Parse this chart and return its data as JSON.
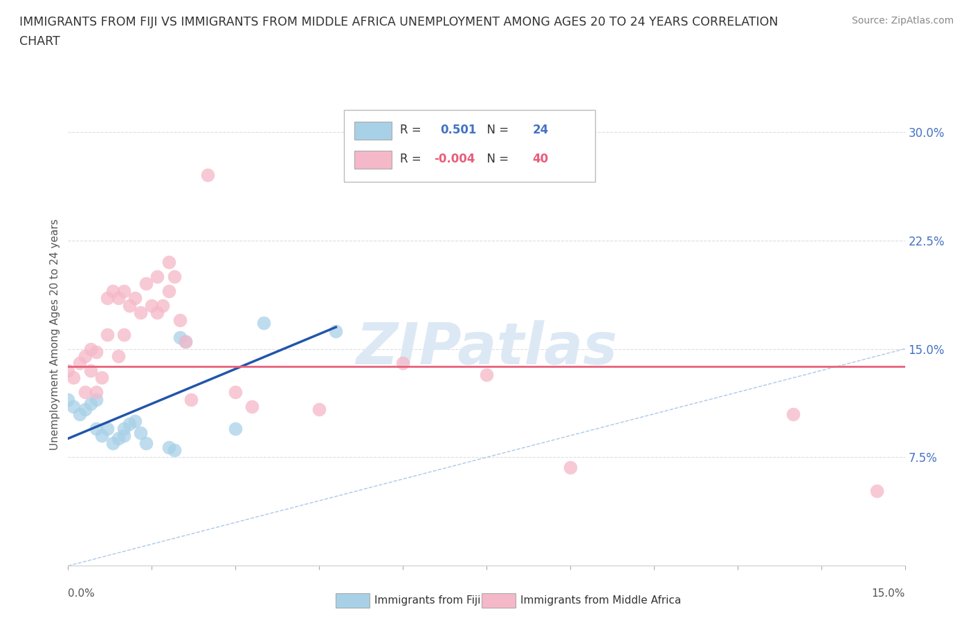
{
  "title_line1": "IMMIGRANTS FROM FIJI VS IMMIGRANTS FROM MIDDLE AFRICA UNEMPLOYMENT AMONG AGES 20 TO 24 YEARS CORRELATION",
  "title_line2": "CHART",
  "source": "Source: ZipAtlas.com",
  "ylabel": "Unemployment Among Ages 20 to 24 years",
  "fiji_R": "0.501",
  "fiji_N": "24",
  "middle_africa_R": "-0.004",
  "middle_africa_N": "40",
  "fiji_color": "#a8d1e8",
  "middle_africa_color": "#f5b8c8",
  "fiji_line_color": "#2255aa",
  "middle_africa_line_color": "#e8607a",
  "diagonal_line_color": "#aac8e8",
  "watermark_text": "ZIPatlas",
  "watermark_color": "#dce9f5",
  "background_color": "#ffffff",
  "grid_color": "#dddddd",
  "xlim": [
    0.0,
    0.15
  ],
  "ylim": [
    0.0,
    0.32
  ],
  "ytick_vals": [
    0.075,
    0.15,
    0.225,
    0.3
  ],
  "ytick_lbls": [
    "7.5%",
    "15.0%",
    "22.5%",
    "30.0%"
  ],
  "xtick_vals": [
    0.0,
    0.015,
    0.03,
    0.045,
    0.06,
    0.075,
    0.09,
    0.105,
    0.12,
    0.135,
    0.15
  ],
  "fiji_scatter_x": [
    0.0,
    0.001,
    0.002,
    0.003,
    0.004,
    0.005,
    0.005,
    0.006,
    0.007,
    0.008,
    0.009,
    0.01,
    0.01,
    0.011,
    0.012,
    0.013,
    0.014,
    0.018,
    0.019,
    0.02,
    0.021,
    0.03,
    0.035,
    0.048
  ],
  "fiji_scatter_y": [
    0.115,
    0.11,
    0.105,
    0.108,
    0.112,
    0.115,
    0.095,
    0.09,
    0.095,
    0.085,
    0.088,
    0.09,
    0.095,
    0.098,
    0.1,
    0.092,
    0.085,
    0.082,
    0.08,
    0.158,
    0.155,
    0.095,
    0.168,
    0.162
  ],
  "middle_africa_scatter_x": [
    0.0,
    0.001,
    0.002,
    0.003,
    0.003,
    0.004,
    0.004,
    0.005,
    0.005,
    0.006,
    0.007,
    0.007,
    0.008,
    0.009,
    0.009,
    0.01,
    0.01,
    0.011,
    0.012,
    0.013,
    0.014,
    0.015,
    0.016,
    0.016,
    0.017,
    0.018,
    0.018,
    0.019,
    0.02,
    0.021,
    0.022,
    0.025,
    0.03,
    0.033,
    0.045,
    0.06,
    0.075,
    0.09,
    0.13,
    0.145
  ],
  "middle_africa_scatter_y": [
    0.135,
    0.13,
    0.14,
    0.145,
    0.12,
    0.135,
    0.15,
    0.148,
    0.12,
    0.13,
    0.185,
    0.16,
    0.19,
    0.185,
    0.145,
    0.19,
    0.16,
    0.18,
    0.185,
    0.175,
    0.195,
    0.18,
    0.2,
    0.175,
    0.18,
    0.19,
    0.21,
    0.2,
    0.17,
    0.155,
    0.115,
    0.27,
    0.12,
    0.11,
    0.108,
    0.14,
    0.132,
    0.068,
    0.105,
    0.052
  ],
  "fiji_trend_x": [
    0.0,
    0.048
  ],
  "fiji_trend_y": [
    0.088,
    0.165
  ],
  "middle_africa_trend_x": [
    0.0,
    0.15
  ],
  "middle_africa_trend_y": [
    0.138,
    0.138
  ]
}
